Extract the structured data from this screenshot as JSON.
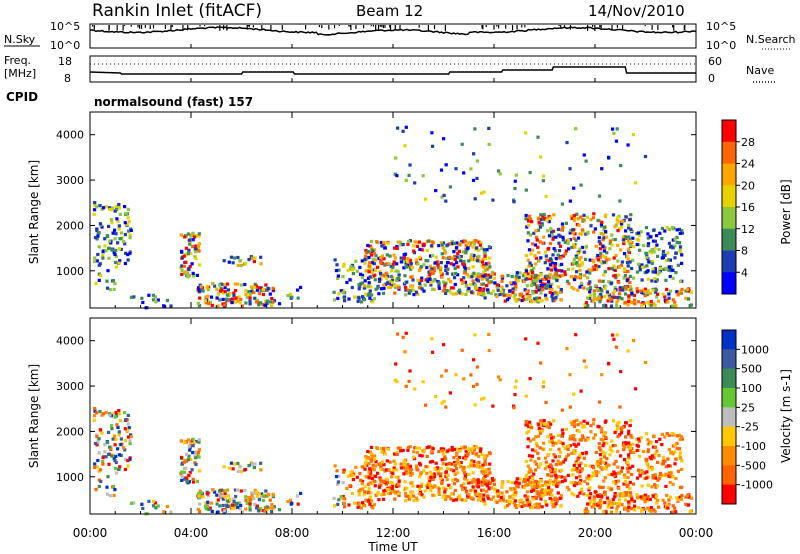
{
  "header": {
    "station": "Rankin Inlet (fitACF)",
    "beam": "Beam 12",
    "date": "14/Nov/2010"
  },
  "nsky_panel": {
    "label": "N.Sky",
    "right_label": "N.Search",
    "left_ticks": [
      "10^5",
      "10^0"
    ],
    "right_ticks": [
      "10^5",
      "10^0"
    ]
  },
  "freq_panel": {
    "label_line1": "Freq.",
    "label_line2": "[MHz]",
    "right_label": "Nave",
    "left_ticks": [
      "18",
      "8"
    ],
    "right_ticks": [
      "60",
      "0"
    ]
  },
  "cpid": {
    "label": "CPID",
    "value": "normalsound (fast) 157"
  },
  "chart_data": [
    {
      "type": "heatmap",
      "name": "power",
      "ylabel": "Slant Range [km]",
      "xlabel": "",
      "y_ticks": [
        "1000",
        "2000",
        "3000",
        "4000"
      ],
      "ylim": [
        180,
        4500
      ],
      "colorbar": {
        "label": "Power [dB]",
        "ticks": [
          "28",
          "24",
          "20",
          "16",
          "12",
          "8",
          "4"
        ],
        "colors": [
          "#ff0000",
          "#ff6600",
          "#ffa500",
          "#e6d200",
          "#8cc83c",
          "#3c8c5a",
          "#1e3cb4",
          "#0000ff"
        ]
      }
    },
    {
      "type": "heatmap",
      "name": "velocity",
      "ylabel": "Slant Range [km]",
      "xlabel": "Time UT",
      "y_ticks": [
        "1000",
        "2000",
        "3000",
        "4000"
      ],
      "ylim": [
        180,
        4500
      ],
      "x_ticks": [
        "00:00",
        "04:00",
        "08:00",
        "12:00",
        "16:00",
        "20:00",
        "00:00"
      ],
      "colorbar": {
        "label": "Velocity [m s-1]",
        "ticks": [
          "1000",
          "500",
          "100",
          "25",
          "-25",
          "-100",
          "-500",
          "-1000"
        ],
        "colors": [
          "#0032c8",
          "#3c5aa0",
          "#3c8c5a",
          "#64c832",
          "#bebebe",
          "#ffc800",
          "#ff8c00",
          "#ff6400",
          "#ff0000"
        ]
      }
    }
  ]
}
